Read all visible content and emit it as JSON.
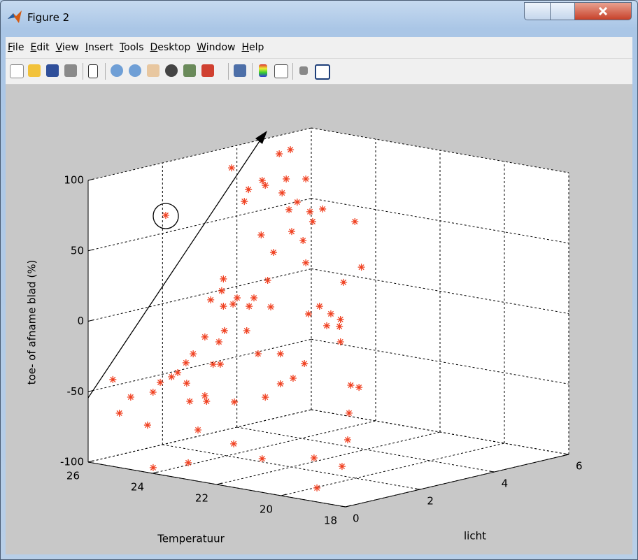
{
  "window": {
    "title": "Figure 2"
  },
  "menu": {
    "items": [
      "File",
      "Edit",
      "View",
      "Insert",
      "Tools",
      "Desktop",
      "Window",
      "Help"
    ]
  },
  "chart_data": {
    "type": "scatter3d",
    "xlabel": "Temperatuur",
    "ylabel": "licht",
    "zlabel": "toe- of afname blad (%)",
    "color": "#f04020",
    "marker": "*",
    "grid": true,
    "xlim": [
      18,
      26
    ],
    "xticks": [
      18,
      20,
      22,
      24,
      26
    ],
    "ylim": [
      0,
      6
    ],
    "yticks": [
      0,
      2,
      4,
      6
    ],
    "zlim": [
      -100,
      100
    ],
    "zticks": [
      -100,
      -50,
      0,
      50,
      100
    ],
    "x": [
      25.59,
      25.48,
      25.29,
      25.01,
      24.92,
      23.98,
      24.8,
      24.71,
      24.61,
      24.51,
      24.37,
      24.36,
      24.31,
      22.89,
      24.25,
      24.17,
      24.06,
      24.06,
      24.03,
      23.96,
      23.92,
      23.82,
      23.8,
      23.78,
      23.75,
      23.75,
      23.73,
      25.01,
      23.59,
      23.58,
      23.57,
      23.52,
      23.4,
      23.36,
      23.33,
      23.32,
      23.24,
      23.17,
      23.12,
      23.1,
      23.05,
      23.01,
      22.96,
      22.91,
      25.61,
      22.8,
      22.8,
      22.77,
      22.7,
      22.66,
      25.61,
      22.61,
      22.59,
      22.52,
      22.42,
      22.4,
      22.38,
      22.33,
      22.31,
      22.26,
      22.24,
      18.89,
      22.15,
      22.1,
      22.03,
      21.96,
      21.82,
      21.8,
      21.8,
      18.11,
      21.75,
      21.68,
      21.66,
      21.63,
      21.56,
      21.49,
      21.45,
      23.1,
      23.05,
      22.38
    ],
    "y": [
      0.31,
      0.39,
      0.53,
      0.74,
      0.81,
      0,
      0.9,
      0.97,
      1.04,
      1.12,
      1.22,
      1.23,
      1.27,
      0,
      1.31,
      1.37,
      1.46,
      1.46,
      1.48,
      1.53,
      1.56,
      1.63,
      1.65,
      1.67,
      1.69,
      1.69,
      1.7,
      3,
      1.81,
      1.82,
      1.83,
      1.86,
      1.95,
      1.98,
      2.0,
      2.01,
      2.07,
      2.12,
      2.16,
      2.17,
      2.21,
      2.24,
      2.28,
      2.31,
      4.8,
      2.4,
      2.4,
      2.42,
      2.47,
      2.51,
      5.1,
      2.54,
      2.56,
      2.61,
      2.68,
      2.7,
      2.72,
      2.75,
      2.77,
      2.8,
      2.82,
      0,
      2.89,
      2.93,
      2.98,
      3.03,
      3.14,
      3.15,
      3.15,
      0,
      3.19,
      3.24,
      3.26,
      3.28,
      3.33,
      3.38,
      3.41,
      2.17,
      2.21,
      2.72
    ],
    "z": [
      -41.7,
      -65.6,
      -54.3,
      -74.4,
      -51.1,
      -95.9,
      -44.2,
      74.3,
      -40.4,
      -37.5,
      -30.6,
      -45.1,
      -58.0,
      -88.1,
      -24.3,
      -78.4,
      -12.5,
      -54.2,
      -58.2,
      13.8,
      -32.0,
      -16.1,
      -32.0,
      20.1,
      28.5,
      9.1,
      -8.2,
      94.2,
      10.5,
      -88.7,
      -59.0,
      14.9,
      83.3,
      -8.5,
      91.7,
      8.8,
      14.7,
      -25.0,
      59.3,
      -99.5,
      -55.9,
      27.0,
      8.1,
      46.8,
      90.6,
      -25.3,
      -46.6,
      88.9,
      98.8,
      76.9,
      91.7,
      61.4,
      -42.8,
      82.2,
      54.9,
      -32.5,
      39.0,
      2.7,
      75.2,
      68.2,
      -99.6,
      -90.1,
      8.0,
      77.0,
      -5.9,
      2.5,
      -6.6,
      -1.6,
      -17.5,
      -71.7,
      24.7,
      -87.1,
      -68.2,
      -48.4,
      67.7,
      -50.0,
      35.3,
      98.0,
      94.5,
      98.5
    ]
  }
}
